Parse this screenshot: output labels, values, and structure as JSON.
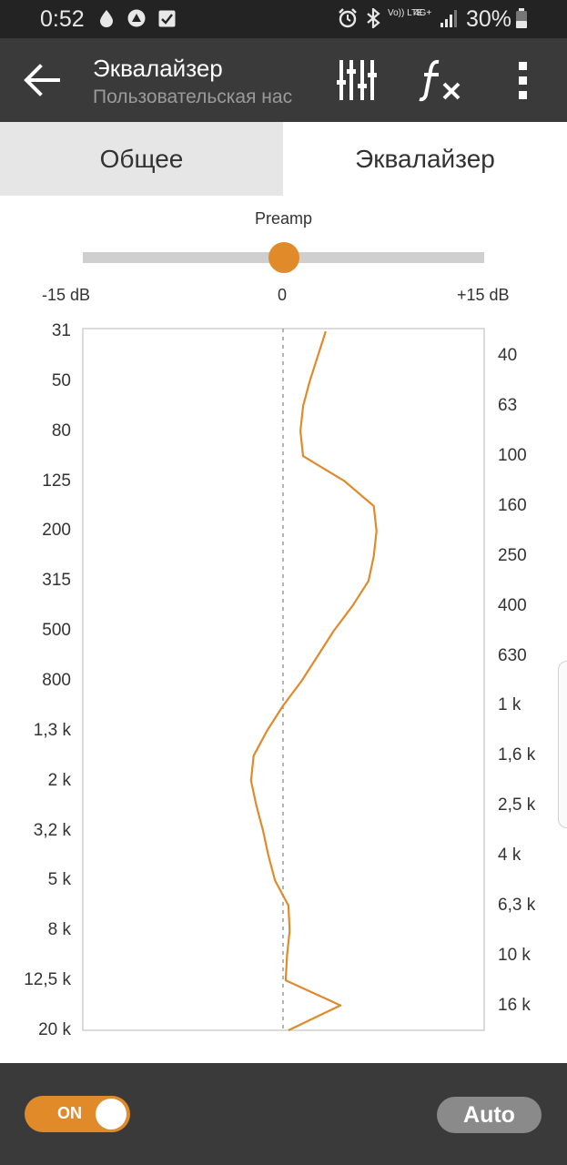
{
  "status_bar": {
    "time": "0:52",
    "network_top": "Vo)) LTE",
    "network_4g": "4G+",
    "battery_percent": "30%",
    "icons": [
      "drop-icon",
      "triangle-icon",
      "check-square-icon",
      "alarm-icon",
      "bluetooth-icon",
      "volte-icon",
      "4g-icon",
      "signal-icon",
      "battery-icon"
    ]
  },
  "app_bar": {
    "title": "Эквалайзер",
    "subtitle": "Пользовательская нас",
    "icons": [
      "back-arrow-icon",
      "sliders-icon",
      "fx-icon",
      "more-vert-icon"
    ]
  },
  "tabs": [
    {
      "label": "Общее",
      "selected": false
    },
    {
      "label": "Эквалайзер",
      "selected": true
    }
  ],
  "preamp": {
    "label": "Preamp",
    "min_label": "-15 dB",
    "mid_label": "0",
    "max_label": "+15 dB",
    "value_db": 0
  },
  "equalizer": {
    "accent_color": "#e08a2a",
    "bands": [
      {
        "freq": "31",
        "gain_db": 3.2
      },
      {
        "freq": "40",
        "gain_db": 2.6
      },
      {
        "freq": "50",
        "gain_db": 2.0
      },
      {
        "freq": "63",
        "gain_db": 1.5
      },
      {
        "freq": "80",
        "gain_db": 1.3
      },
      {
        "freq": "100",
        "gain_db": 1.5
      },
      {
        "freq": "125",
        "gain_db": 4.6
      },
      {
        "freq": "160",
        "gain_db": 6.8
      },
      {
        "freq": "200",
        "gain_db": 7.0
      },
      {
        "freq": "250",
        "gain_db": 6.8
      },
      {
        "freq": "315",
        "gain_db": 6.4
      },
      {
        "freq": "400",
        "gain_db": 5.2
      },
      {
        "freq": "500",
        "gain_db": 3.8
      },
      {
        "freq": "630",
        "gain_db": 2.6
      },
      {
        "freq": "800",
        "gain_db": 1.4
      },
      {
        "freq": "1 k",
        "gain_db": 0.0
      },
      {
        "freq": "1,3 k",
        "gain_db": -1.2
      },
      {
        "freq": "1,6 k",
        "gain_db": -2.2
      },
      {
        "freq": "2 k",
        "gain_db": -2.4
      },
      {
        "freq": "2,5 k",
        "gain_db": -2.0
      },
      {
        "freq": "3,2 k",
        "gain_db": -1.5
      },
      {
        "freq": "4 k",
        "gain_db": -1.1
      },
      {
        "freq": "5 k",
        "gain_db": -0.6
      },
      {
        "freq": "6,3 k",
        "gain_db": 0.4
      },
      {
        "freq": "8 k",
        "gain_db": 0.5
      },
      {
        "freq": "10 k",
        "gain_db": 0.3
      },
      {
        "freq": "12,5 k",
        "gain_db": 0.2
      },
      {
        "freq": "16 k",
        "gain_db": 4.3
      },
      {
        "freq": "20 k",
        "gain_db": 0.4
      }
    ]
  },
  "bottom_bar": {
    "toggle_label": "ON",
    "toggle_on": true,
    "auto_label": "Auto"
  }
}
